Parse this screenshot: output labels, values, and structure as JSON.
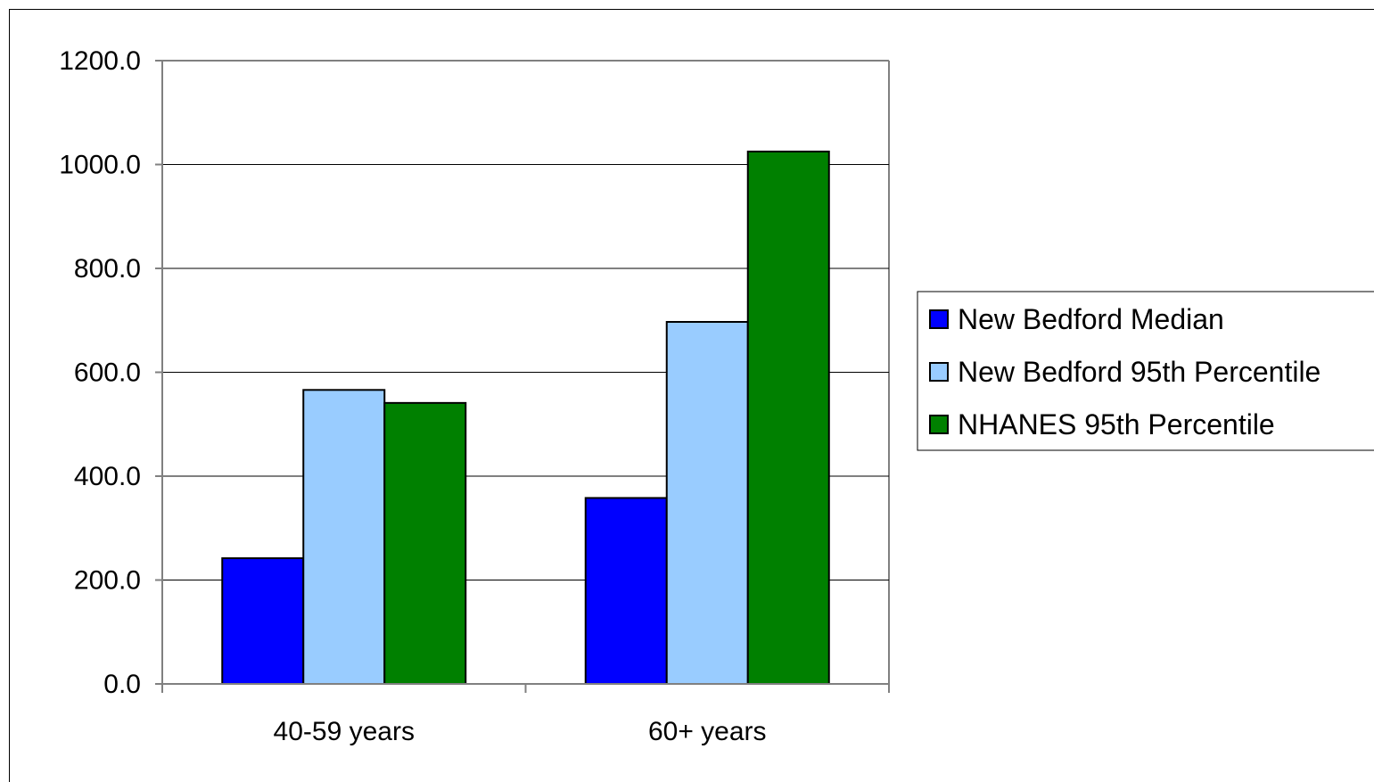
{
  "chart_data": {
    "type": "bar",
    "title": "",
    "xlabel": "",
    "ylabel": "",
    "ylim": [
      0,
      1200
    ],
    "yticks": [
      0,
      200,
      400,
      600,
      800,
      1000,
      1200
    ],
    "ytick_labels": [
      "0.0",
      "200.0",
      "400.0",
      "600.0",
      "800.0",
      "1000.0",
      "1200.0"
    ],
    "grid": true,
    "legend_position": "right",
    "categories": [
      "40-59 years",
      "60+ years"
    ],
    "series": [
      {
        "name": "New Bedford Median",
        "color": "#0000ff",
        "values": [
          242,
          358
        ]
      },
      {
        "name": "New Bedford 95th Percentile",
        "color": "#99ccff",
        "values": [
          566,
          697
        ]
      },
      {
        "name": "NHANES 95th Percentile",
        "color": "#008000",
        "values": [
          541,
          1025
        ]
      }
    ]
  }
}
